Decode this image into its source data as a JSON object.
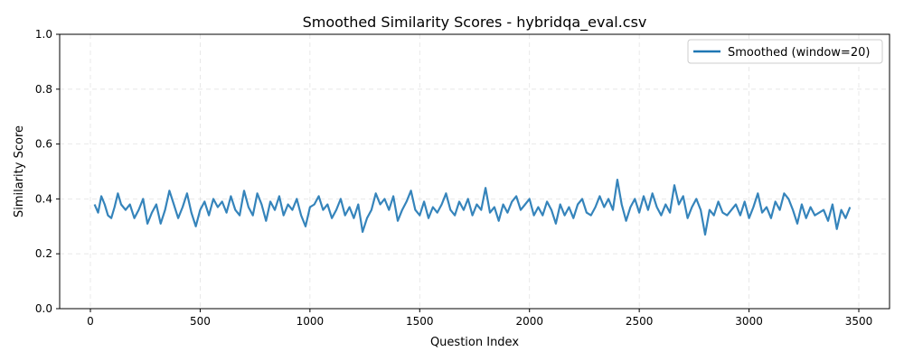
{
  "chart_data": {
    "type": "line",
    "title": "Smoothed Similarity Scores - hybridqa_eval.csv",
    "xlabel": "Question Index",
    "ylabel": "Similarity Score",
    "xlim": [
      -140,
      3640
    ],
    "ylim": [
      0.0,
      1.0
    ],
    "xticks": [
      0,
      500,
      1000,
      1500,
      2000,
      2500,
      3000,
      3500
    ],
    "xtick_labels": [
      "0",
      "500",
      "1000",
      "1500",
      "2000",
      "2500",
      "3000",
      "3500"
    ],
    "yticks": [
      0.0,
      0.2,
      0.4,
      0.6,
      0.8,
      1.0
    ],
    "ytick_labels": [
      "0.0",
      "0.2",
      "0.4",
      "0.6",
      "0.8",
      "1.0"
    ],
    "grid": true,
    "legend_position": "top-right",
    "series": [
      {
        "name": "Smoothed (window=20)",
        "color": "#1f77b4",
        "x": [
          19,
          35,
          50,
          65,
          80,
          95,
          110,
          125,
          140,
          160,
          180,
          200,
          220,
          240,
          260,
          280,
          300,
          320,
          340,
          360,
          380,
          400,
          420,
          440,
          460,
          480,
          500,
          520,
          540,
          560,
          580,
          600,
          620,
          640,
          660,
          680,
          700,
          720,
          740,
          760,
          780,
          800,
          820,
          840,
          860,
          880,
          900,
          920,
          940,
          960,
          980,
          1000,
          1020,
          1040,
          1060,
          1080,
          1100,
          1120,
          1140,
          1160,
          1180,
          1200,
          1220,
          1240,
          1260,
          1280,
          1300,
          1320,
          1340,
          1360,
          1380,
          1400,
          1420,
          1440,
          1460,
          1480,
          1500,
          1520,
          1540,
          1560,
          1580,
          1600,
          1620,
          1640,
          1660,
          1680,
          1700,
          1720,
          1740,
          1760,
          1780,
          1800,
          1820,
          1840,
          1860,
          1880,
          1900,
          1920,
          1940,
          1960,
          1980,
          2000,
          2020,
          2040,
          2060,
          2080,
          2100,
          2120,
          2140,
          2160,
          2180,
          2200,
          2220,
          2240,
          2260,
          2280,
          2300,
          2320,
          2340,
          2360,
          2380,
          2400,
          2420,
          2440,
          2460,
          2480,
          2500,
          2520,
          2540,
          2560,
          2580,
          2600,
          2620,
          2640,
          2660,
          2680,
          2700,
          2720,
          2740,
          2760,
          2780,
          2800,
          2820,
          2840,
          2860,
          2880,
          2900,
          2920,
          2940,
          2960,
          2980,
          3000,
          3020,
          3040,
          3060,
          3080,
          3100,
          3120,
          3140,
          3160,
          3180,
          3200,
          3220,
          3240,
          3260,
          3280,
          3300,
          3320,
          3340,
          3360,
          3380,
          3400,
          3420,
          3440,
          3460
        ],
        "y": [
          0.38,
          0.35,
          0.41,
          0.38,
          0.34,
          0.33,
          0.37,
          0.42,
          0.38,
          0.36,
          0.38,
          0.33,
          0.36,
          0.4,
          0.31,
          0.35,
          0.38,
          0.31,
          0.36,
          0.43,
          0.38,
          0.33,
          0.37,
          0.42,
          0.35,
          0.3,
          0.36,
          0.39,
          0.34,
          0.4,
          0.37,
          0.39,
          0.35,
          0.41,
          0.36,
          0.34,
          0.43,
          0.37,
          0.34,
          0.42,
          0.38,
          0.32,
          0.39,
          0.36,
          0.41,
          0.34,
          0.38,
          0.36,
          0.4,
          0.34,
          0.3,
          0.37,
          0.38,
          0.41,
          0.36,
          0.38,
          0.33,
          0.36,
          0.4,
          0.34,
          0.37,
          0.33,
          0.38,
          0.28,
          0.33,
          0.36,
          0.42,
          0.38,
          0.4,
          0.36,
          0.41,
          0.32,
          0.36,
          0.39,
          0.43,
          0.36,
          0.34,
          0.39,
          0.33,
          0.37,
          0.35,
          0.38,
          0.42,
          0.36,
          0.34,
          0.39,
          0.36,
          0.4,
          0.34,
          0.38,
          0.36,
          0.44,
          0.35,
          0.37,
          0.32,
          0.38,
          0.35,
          0.39,
          0.41,
          0.36,
          0.38,
          0.4,
          0.34,
          0.37,
          0.34,
          0.39,
          0.36,
          0.31,
          0.38,
          0.34,
          0.37,
          0.33,
          0.38,
          0.4,
          0.35,
          0.34,
          0.37,
          0.41,
          0.37,
          0.4,
          0.36,
          0.47,
          0.38,
          0.32,
          0.37,
          0.4,
          0.35,
          0.41,
          0.36,
          0.42,
          0.37,
          0.34,
          0.38,
          0.35,
          0.45,
          0.38,
          0.41,
          0.33,
          0.37,
          0.4,
          0.36,
          0.27,
          0.36,
          0.34,
          0.39,
          0.35,
          0.34,
          0.36,
          0.38,
          0.34,
          0.39,
          0.33,
          0.37,
          0.42,
          0.35,
          0.37,
          0.33,
          0.39,
          0.36,
          0.42,
          0.4,
          0.36,
          0.31,
          0.38,
          0.33,
          0.37,
          0.34,
          0.35,
          0.36,
          0.32,
          0.38,
          0.29,
          0.36,
          0.33,
          0.37
        ]
      }
    ]
  }
}
